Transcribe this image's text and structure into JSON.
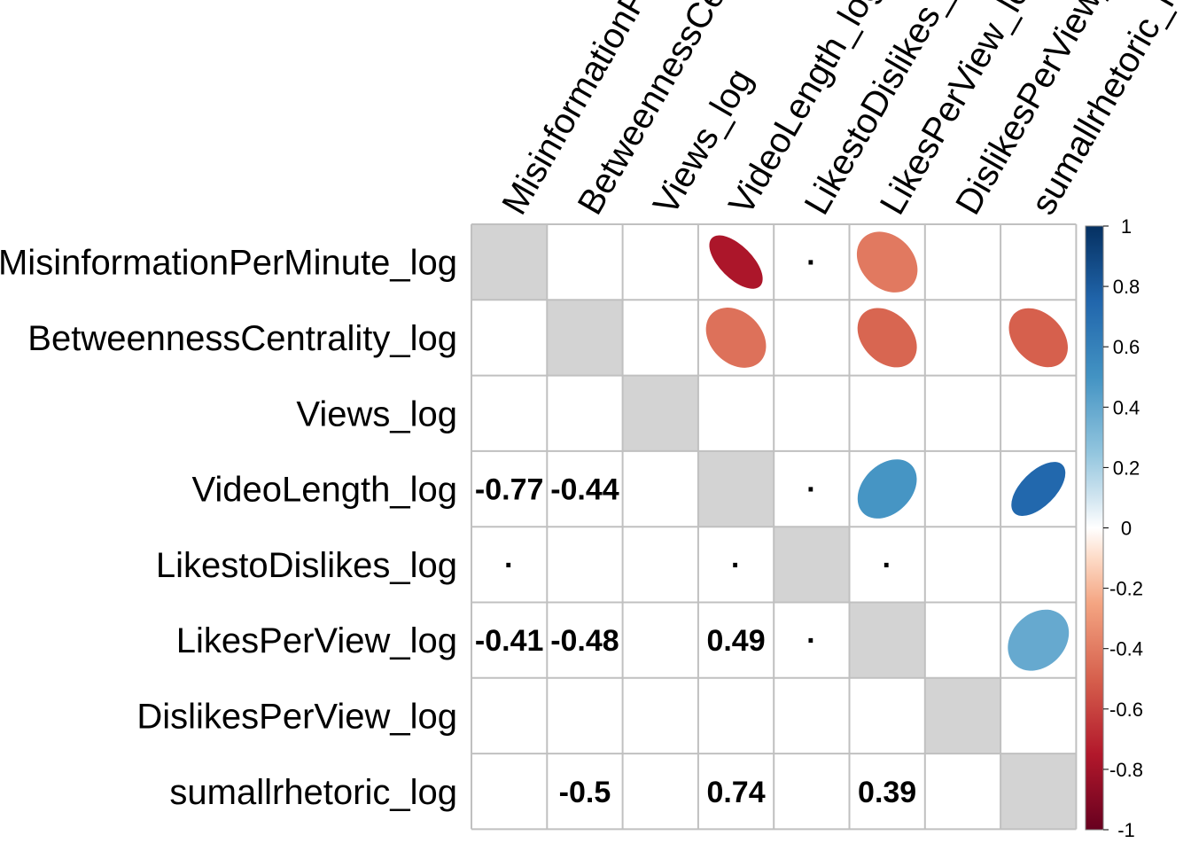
{
  "chart_data": {
    "type": "heatmap",
    "variables": [
      "MisinformationPerMinute_log",
      "BetweennessCentrality_log",
      "Views_log",
      "VideoLength_log",
      "LikestoDislikes_log",
      "LikesPerView_log",
      "DislikesPerView_log",
      "sumallrhetoric_log"
    ],
    "row_labels": [
      "MisinformationPerMinute_log",
      "BetweennessCentrality_log",
      "Views_log",
      "VideoLength_log",
      "LikestoDislikes_log",
      "LikesPerView_log",
      "DislikesPerView_log",
      "sumallrhetoric_log"
    ],
    "col_labels": [
      "MisinformationPerMinute_log",
      "BetweennessCentrality_log",
      "Views_log",
      "VideoLength_log",
      "LikestoDislikes_log",
      "LikesPerView_log",
      "DislikesPerView_log",
      "sumallrhetoric_log"
    ],
    "upper_ellipses": [
      {
        "row": 0,
        "col": 3,
        "value": -0.77
      },
      {
        "row": 0,
        "col": 5,
        "value": -0.41
      },
      {
        "row": 1,
        "col": 3,
        "value": -0.44
      },
      {
        "row": 1,
        "col": 5,
        "value": -0.48
      },
      {
        "row": 1,
        "col": 7,
        "value": -0.5
      },
      {
        "row": 3,
        "col": 5,
        "value": 0.49
      },
      {
        "row": 3,
        "col": 7,
        "value": 0.74
      },
      {
        "row": 5,
        "col": 7,
        "value": 0.39
      }
    ],
    "upper_dots": [
      {
        "row": 0,
        "col": 4
      },
      {
        "row": 3,
        "col": 4
      },
      {
        "row": 5,
        "col": 4
      }
    ],
    "lower_labels": [
      {
        "row": 3,
        "col": 0,
        "text": "-0.77"
      },
      {
        "row": 3,
        "col": 1,
        "text": "-0.44"
      },
      {
        "row": 5,
        "col": 0,
        "text": "-0.41"
      },
      {
        "row": 5,
        "col": 1,
        "text": "-0.48"
      },
      {
        "row": 5,
        "col": 3,
        "text": "0.49"
      },
      {
        "row": 7,
        "col": 1,
        "text": "-0.5"
      },
      {
        "row": 7,
        "col": 3,
        "text": "0.74"
      },
      {
        "row": 7,
        "col": 5,
        "text": "0.39"
      }
    ],
    "lower_dots": [
      {
        "row": 4,
        "col": 0
      },
      {
        "row": 4,
        "col": 3
      },
      {
        "row": 4,
        "col": 5
      }
    ],
    "colorbar": {
      "range": [
        -1,
        1
      ],
      "ticks": [
        "1",
        "0.8",
        "0.6",
        "0.4",
        "0.2",
        "0",
        "-0.2",
        "-0.4",
        "-0.6",
        "-0.8",
        "-1"
      ],
      "tick_values": [
        1,
        0.8,
        0.6,
        0.4,
        0.2,
        0,
        -0.2,
        -0.4,
        -0.6,
        -0.8,
        -1
      ],
      "stops": [
        {
          "value": -1,
          "color": "#67001F"
        },
        {
          "value": -0.75,
          "color": "#B2182B"
        },
        {
          "value": -0.5,
          "color": "#D6604D"
        },
        {
          "value": -0.25,
          "color": "#F4A582"
        },
        {
          "value": -0.1,
          "color": "#FDDBC7"
        },
        {
          "value": 0,
          "color": "#FFFFFF"
        },
        {
          "value": 0.1,
          "color": "#D1E5F0"
        },
        {
          "value": 0.25,
          "color": "#92C5DE"
        },
        {
          "value": 0.5,
          "color": "#4393C3"
        },
        {
          "value": 0.75,
          "color": "#2166AC"
        },
        {
          "value": 1,
          "color": "#053061"
        }
      ]
    },
    "colors": {
      "diagonal": "#D3D3D3",
      "grid": "#C0C0C0"
    },
    "dot_glyph": "·"
  }
}
